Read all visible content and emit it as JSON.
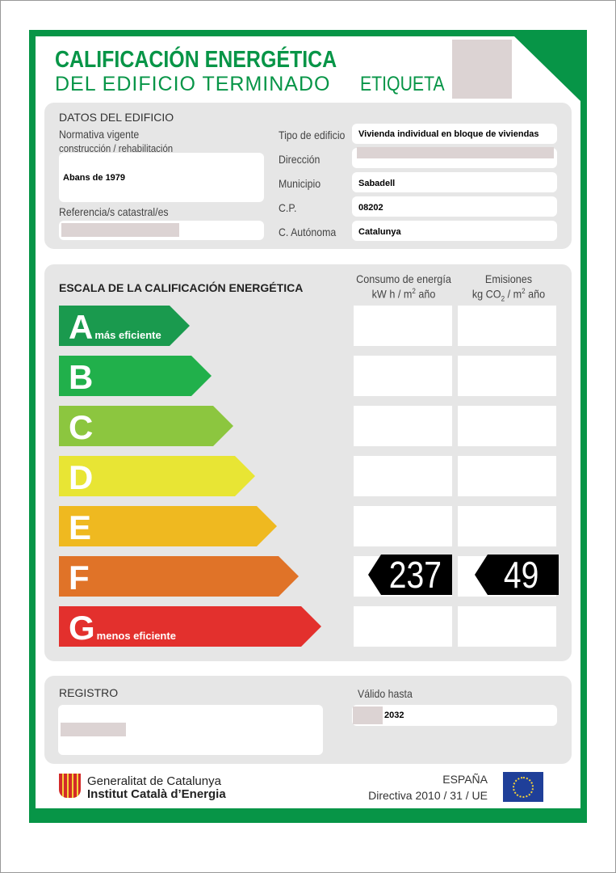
{
  "header": {
    "title_line1": "CALIFICACIÓN ENERGÉTICA",
    "title_line2": "DEL EDIFICIO TERMINADO",
    "etiqueta": "ETIQUETA"
  },
  "datos": {
    "heading": "DATOS DEL EDIFICIO",
    "normativa_label_1": "Normativa vigente",
    "normativa_label_2": "construcción / rehabilitación",
    "normativa_value": "Abans de 1979",
    "referencia_label": "Referencia/s catastral/es",
    "tipo_label": "Tipo de edificio",
    "tipo_value": "Vivienda individual en bloque de viviendas",
    "direccion_label": "Dirección",
    "municipio_label": "Municipio",
    "municipio_value": "Sabadell",
    "cp_label": "C.P.",
    "cp_value": "08202",
    "autonoma_label": "C. Autónoma",
    "autonoma_value": "Catalunya"
  },
  "escala": {
    "heading": "ESCALA DE LA CALIFICACIÓN ENERGÉTICA",
    "consumo_label": "Consumo de energía",
    "consumo_unit_a": "kW h  / m",
    "consumo_unit_sup": "2",
    "consumo_unit_b": " año",
    "emisiones_label": "Emisiones",
    "emisiones_unit_a": "kg CO",
    "emisiones_unit_sub": "2",
    "emisiones_unit_b": "  / m",
    "emisiones_unit_sup": "2",
    "emisiones_unit_c": " año",
    "classes": [
      {
        "letter": "A",
        "sub": "más eficiente",
        "color": "#1a9a4e"
      },
      {
        "letter": "B",
        "sub": "",
        "color": "#21b04b"
      },
      {
        "letter": "C",
        "sub": "",
        "color": "#8cc63f"
      },
      {
        "letter": "D",
        "sub": "",
        "color": "#e8e534"
      },
      {
        "letter": "E",
        "sub": "",
        "color": "#efb920"
      },
      {
        "letter": "F",
        "sub": "",
        "color": "#e07328"
      },
      {
        "letter": "G",
        "sub": "menos eficiente",
        "color": "#e3302d"
      }
    ],
    "rating": "F",
    "consumo_value": "237",
    "emisiones_value": "49"
  },
  "registro": {
    "heading": "REGISTRO",
    "valido_label": "Válido hasta",
    "valido_value": "2032"
  },
  "footer": {
    "org1": "Generalitat de Catalunya",
    "org2": "Institut Català d’Energia",
    "country": "ESPAÑA",
    "directiva": "Directiva 2010 / 31 / UE"
  },
  "colors": {
    "brand_green": "#079547",
    "panel_gray": "#e6e6e6"
  }
}
